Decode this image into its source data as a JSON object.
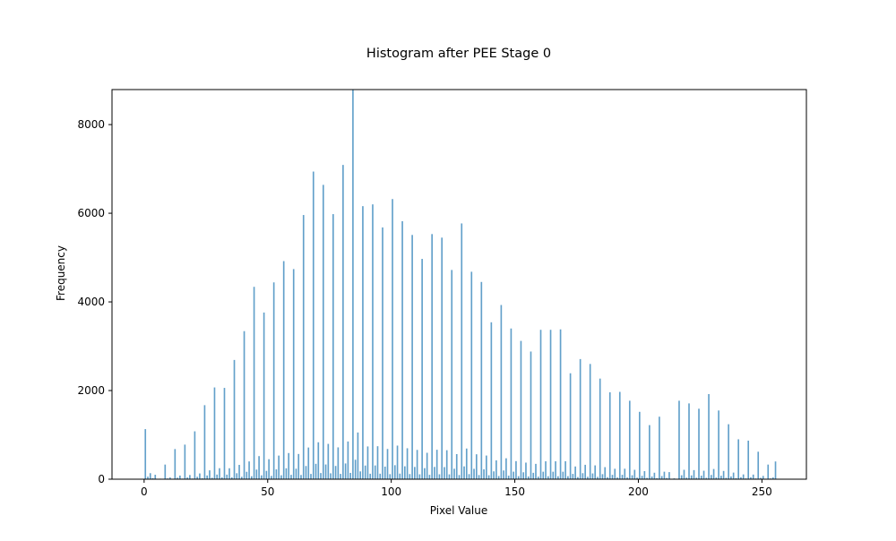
{
  "chart_data": {
    "type": "histogram",
    "title": "Histogram after PEE Stage 0",
    "xlabel": "Pixel Value",
    "ylabel": "Frequency",
    "color": "#1f77b4",
    "alpha": 0.7,
    "bins": [
      0,
      1,
      2,
      3,
      4,
      5,
      6,
      7,
      8,
      9,
      10,
      11,
      12,
      13,
      14,
      15,
      16,
      17,
      18,
      19,
      20,
      21,
      22,
      23,
      24,
      25,
      26,
      27,
      28,
      29,
      30,
      31,
      32,
      33,
      34,
      35,
      36,
      37,
      38,
      39,
      40,
      41,
      42,
      43,
      44,
      45,
      46,
      47,
      48,
      49,
      50,
      51,
      52,
      53,
      54,
      55,
      56,
      57,
      58,
      59,
      60,
      61,
      62,
      63,
      64,
      65,
      66,
      67,
      68,
      69,
      70,
      71,
      72,
      73,
      74,
      75,
      76,
      77,
      78,
      79,
      80,
      81,
      82,
      83,
      84,
      85,
      86,
      87,
      88,
      89,
      90,
      91,
      92,
      93,
      94,
      95,
      96,
      97,
      98,
      99,
      100,
      101,
      102,
      103,
      104,
      105,
      106,
      107,
      108,
      109,
      110,
      111,
      112,
      113,
      114,
      115,
      116,
      117,
      118,
      119,
      120,
      121,
      122,
      123,
      124,
      125,
      126,
      127,
      128,
      129,
      130,
      131,
      132,
      133,
      134,
      135,
      136,
      137,
      138,
      139,
      140,
      141,
      142,
      143,
      144,
      145,
      146,
      147,
      148,
      149,
      150,
      151,
      152,
      153,
      154,
      155,
      156,
      157,
      158,
      159,
      160,
      161,
      162,
      163,
      164,
      165,
      166,
      167,
      168,
      169,
      170,
      171,
      172,
      173,
      174,
      175,
      176,
      177,
      178,
      179,
      180,
      181,
      182,
      183,
      184,
      185,
      186,
      187,
      188,
      189,
      190,
      191,
      192,
      193,
      194,
      195,
      196,
      197,
      198,
      199,
      200,
      201,
      202,
      203,
      204,
      205,
      206,
      207,
      208,
      209,
      210,
      211,
      212,
      213,
      214,
      215,
      216,
      217,
      218,
      219,
      220,
      221,
      222,
      223,
      224,
      225,
      226,
      227,
      228,
      229,
      230,
      231,
      232,
      233,
      234,
      235,
      236,
      237,
      238,
      239,
      240,
      241,
      242,
      243,
      244,
      245,
      246,
      247,
      248,
      249,
      250,
      251,
      252,
      253,
      254,
      255,
      256
    ],
    "values": [
      1130,
      57,
      136,
      23,
      100,
      5,
      12,
      2,
      330,
      17,
      40,
      7,
      680,
      34,
      82,
      14,
      780,
      39,
      94,
      16,
      1080,
      54,
      130,
      22,
      1670,
      84,
      200,
      33,
      2070,
      104,
      248,
      41,
      2060,
      103,
      247,
      41,
      2690,
      135,
      323,
      54,
      3340,
      167,
      401,
      67,
      4340,
      217,
      521,
      87,
      3760,
      188,
      451,
      75,
      4440,
      222,
      533,
      89,
      4920,
      246,
      590,
      98,
      4740,
      237,
      569,
      95,
      5960,
      298,
      715,
      119,
      6940,
      347,
      833,
      139,
      6640,
      332,
      797,
      133,
      5980,
      299,
      718,
      120,
      7090,
      355,
      851,
      142,
      8780,
      439,
      1054,
      176,
      6160,
      308,
      739,
      123,
      6200,
      310,
      744,
      124,
      5680,
      284,
      682,
      114,
      6320,
      316,
      758,
      126,
      5820,
      291,
      698,
      116,
      5510,
      276,
      661,
      110,
      4970,
      249,
      596,
      99,
      5530,
      277,
      664,
      111,
      5450,
      273,
      654,
      109,
      4720,
      236,
      566,
      94,
      5770,
      289,
      692,
      115,
      4680,
      234,
      562,
      94,
      4450,
      223,
      534,
      89,
      3540,
      177,
      425,
      71,
      3930,
      197,
      472,
      79,
      3400,
      170,
      408,
      68,
      3120,
      156,
      374,
      62,
      2880,
      144,
      346,
      58,
      3370,
      169,
      404,
      67,
      3370,
      169,
      404,
      67,
      3380,
      169,
      406,
      68,
      2390,
      120,
      287,
      48,
      2710,
      136,
      325,
      54,
      2600,
      130,
      312,
      52,
      2270,
      114,
      272,
      45,
      1960,
      98,
      235,
      39,
      1970,
      99,
      236,
      39,
      1770,
      89,
      212,
      35,
      1520,
      76,
      182,
      30,
      1220,
      61,
      146,
      24,
      1410,
      71,
      169,
      28,
      160,
      8,
      19,
      3,
      1770,
      89,
      212,
      35,
      1710,
      86,
      205,
      34,
      1590,
      80,
      191,
      32,
      1920,
      96,
      230,
      38,
      1550,
      78,
      186,
      31,
      1240,
      62,
      149,
      25,
      900,
      45,
      108,
      18,
      870,
      44,
      104,
      17,
      620,
      31,
      74,
      12,
      330,
      17,
      40,
      400
    ],
    "xlim": [
      -13,
      268
    ],
    "ylim": [
      0,
      8790
    ],
    "xticks": [
      0,
      50,
      100,
      150,
      200,
      250
    ],
    "yticks": [
      0,
      2000,
      4000,
      6000,
      8000
    ]
  }
}
